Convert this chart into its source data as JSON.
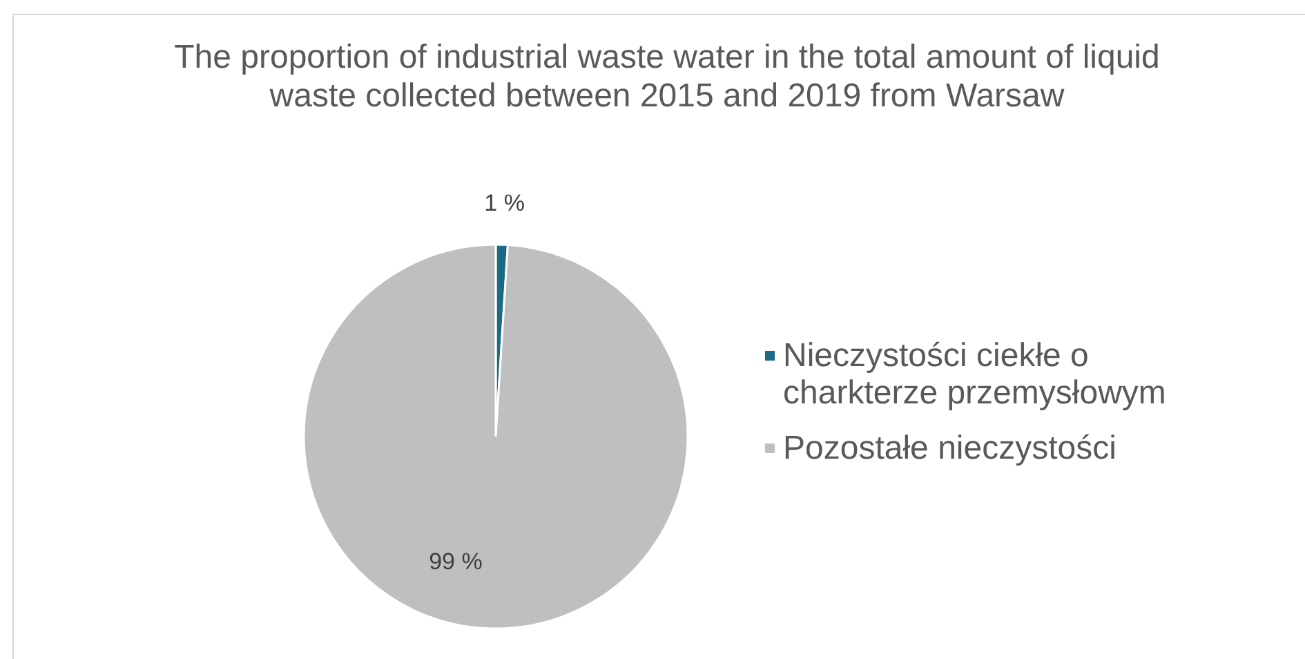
{
  "chart_data": {
    "type": "pie",
    "title": "The proportion of industrial waste water in the total amount of liquid waste collected between 2015 and 2019 from Warsaw",
    "categories": [
      "Nieczystości ciekłe o charkterze przemysłowym",
      "Pozostałe nieczystości"
    ],
    "values": [
      1,
      99
    ],
    "colors": [
      "#1a6b83",
      "#bfbfbf"
    ],
    "value_labels": [
      "1 %",
      "99 %"
    ],
    "legend": "right"
  }
}
